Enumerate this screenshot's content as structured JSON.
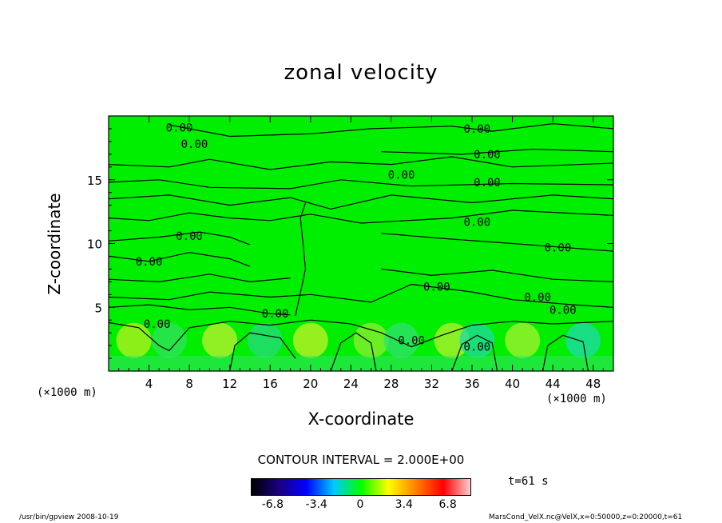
{
  "chart_data": {
    "type": "heatmap",
    "title": "zonal velocity",
    "xlabel": "X-coordinate",
    "ylabel": "Z-coordinate",
    "x_unit_label": "(×1000 m)",
    "x_unit_label_right": "(×1000 m)",
    "xlim": [
      0,
      50
    ],
    "ylim": [
      0,
      20
    ],
    "x_ticks": [
      "4",
      "8",
      "12",
      "16",
      "20",
      "24",
      "28",
      "32",
      "36",
      "40",
      "44",
      "48"
    ],
    "y_ticks": [
      "5",
      "10",
      "15"
    ],
    "x_tick_values": [
      4,
      8,
      12,
      16,
      20,
      24,
      28,
      32,
      36,
      40,
      44,
      48
    ],
    "y_tick_values": [
      5,
      10,
      15
    ],
    "contour_interval_text": "CONTOUR INTERVAL = 2.000E+00",
    "contour_labels": [
      {
        "text": "0.00",
        "x": 7.0,
        "y": 19.1
      },
      {
        "text": "0.00",
        "x": 8.5,
        "y": 17.8
      },
      {
        "text": "0.00",
        "x": 36.5,
        "y": 19.0
      },
      {
        "text": "0.00",
        "x": 37.5,
        "y": 17.0
      },
      {
        "text": "0.00",
        "x": 29.0,
        "y": 15.4
      },
      {
        "text": "0.00",
        "x": 37.5,
        "y": 14.8
      },
      {
        "text": "0.00",
        "x": 36.5,
        "y": 11.7
      },
      {
        "text": "0.00",
        "x": 8.0,
        "y": 10.6
      },
      {
        "text": "0.00",
        "x": 4.0,
        "y": 8.6
      },
      {
        "text": "0.00",
        "x": 44.5,
        "y": 9.7
      },
      {
        "text": "0.00",
        "x": 32.5,
        "y": 6.6
      },
      {
        "text": "0.00",
        "x": 42.5,
        "y": 5.8
      },
      {
        "text": "0.00",
        "x": 45.0,
        "y": 4.8
      },
      {
        "text": "0.00",
        "x": 4.8,
        "y": 3.7
      },
      {
        "text": "0.00",
        "x": 16.5,
        "y": 4.5
      },
      {
        "text": "0.00",
        "x": 30.0,
        "y": 2.4
      },
      {
        "text": "0.00",
        "x": 36.5,
        "y": 1.9
      }
    ],
    "colorbar": {
      "ticks": [
        "-6.8",
        "-3.4",
        "0",
        "3.4",
        "6.8"
      ],
      "tick_values": [
        -6.8,
        -3.4,
        0,
        3.4,
        6.8
      ],
      "range": [
        -8.5,
        8.5
      ],
      "colors": [
        "#000000",
        "#1a0080",
        "#0000ff",
        "#00c8ff",
        "#00ff00",
        "#ffff00",
        "#ff8000",
        "#ff0000",
        "#ffcccc"
      ]
    },
    "field_color": "#00ee00",
    "time_text": "t=61 s",
    "grid": false,
    "legend": "colorbar-bottom"
  },
  "footer": {
    "left": "/usr/bin/gpview    2008-10-19",
    "right": "MarsCond_VelX.nc@VelX,x=0:50000,z=0:20000,t=61"
  }
}
